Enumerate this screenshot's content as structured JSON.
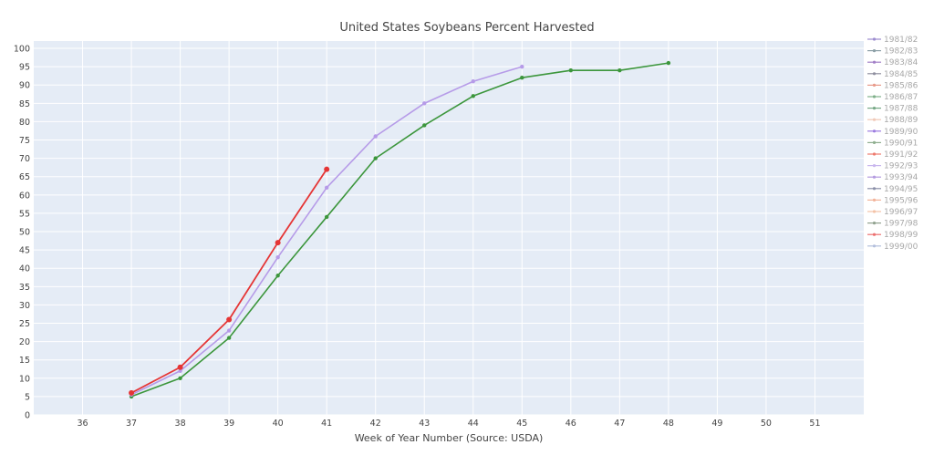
{
  "chart_data": {
    "type": "line",
    "title": "United States Soybeans Percent Harvested",
    "xlabel": "Week of Year Number     (Source: USDA)",
    "ylabel": "",
    "xlim": [
      35,
      52
    ],
    "ylim": [
      0,
      102
    ],
    "x_ticks": [
      36,
      37,
      38,
      39,
      40,
      41,
      42,
      43,
      44,
      45,
      46,
      47,
      48,
      49,
      50,
      51
    ],
    "y_ticks": [
      0,
      5,
      10,
      15,
      20,
      25,
      30,
      35,
      40,
      45,
      50,
      55,
      60,
      65,
      70,
      75,
      80,
      85,
      90,
      95,
      100
    ],
    "grid": true,
    "legend_position": "right",
    "legend": [
      {
        "name": "1981/82",
        "color": "#9c8ccf"
      },
      {
        "name": "1982/83",
        "color": "#8c9fa6"
      },
      {
        "name": "1983/84",
        "color": "#a27fc7"
      },
      {
        "name": "1984/85",
        "color": "#8f8f9f"
      },
      {
        "name": "1985/86",
        "color": "#e89a8a"
      },
      {
        "name": "1986/87",
        "color": "#7fb08a"
      },
      {
        "name": "1987/88",
        "color": "#76a886"
      },
      {
        "name": "1988/89",
        "color": "#f0c9b8"
      },
      {
        "name": "1989/90",
        "color": "#9b7be0"
      },
      {
        "name": "1990/91",
        "color": "#8fae8f"
      },
      {
        "name": "1991/92",
        "color": "#ee7b6e"
      },
      {
        "name": "1992/93",
        "color": "#c9b7ee"
      },
      {
        "name": "1993/94",
        "color": "#b49be0"
      },
      {
        "name": "1994/95",
        "color": "#8a8fa8"
      },
      {
        "name": "1995/96",
        "color": "#f2b39a"
      },
      {
        "name": "1996/97",
        "color": "#f4c3a8"
      },
      {
        "name": "1997/98",
        "color": "#91a28f"
      },
      {
        "name": "1998/99",
        "color": "#ec7070"
      },
      {
        "name": "1999/00",
        "color": "#b3bfdc"
      }
    ],
    "series": [
      {
        "name": "1987/88",
        "color": "#3c963c",
        "marker_size": 2.2,
        "width": 1.6,
        "x": [
          37,
          38,
          39,
          40,
          41,
          42,
          43,
          44,
          45,
          46,
          47,
          48
        ],
        "y": [
          5,
          10,
          21,
          38,
          54,
          70,
          79,
          87,
          92,
          94,
          94,
          96
        ]
      },
      {
        "name": "1989/90",
        "color": "#b69be8",
        "marker_size": 2.2,
        "width": 1.6,
        "x": [
          37,
          38,
          39,
          40,
          41,
          42,
          43,
          44,
          45
        ],
        "y": [
          5.5,
          12,
          23,
          43,
          62,
          76,
          85,
          91,
          95
        ]
      },
      {
        "name": "1998/99",
        "color": "#e53535",
        "marker_size": 3,
        "width": 1.8,
        "x": [
          37,
          38,
          39,
          40,
          41
        ],
        "y": [
          6,
          13,
          26,
          47,
          67
        ]
      }
    ]
  }
}
